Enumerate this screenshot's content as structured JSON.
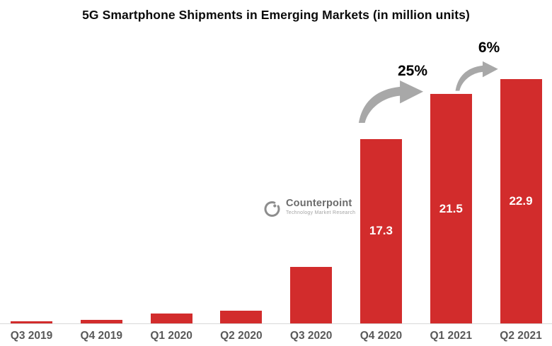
{
  "title": "5G Smartphone Shipments in Emerging Markets (in million units)",
  "watermark": {
    "brand": "Counterpoint",
    "tagline": "Technology Market Research"
  },
  "colors": {
    "background": "#ffffff",
    "bar": "#d22c2c",
    "axis_line": "#d8d8d8",
    "tick_label": "#595959",
    "value_label": "#ffffff",
    "annotation_text": "#000000",
    "arrow": "#a8a8a8",
    "watermark_brand": "#6b6b6b",
    "watermark_tagline": "#a3a3a3",
    "watermark_icon": "#8d8d8d"
  },
  "chart_data": {
    "type": "bar",
    "title": "5G Smartphone Shipments in Emerging Markets (in million units)",
    "categories": [
      "Q3 2019",
      "Q4 2019",
      "Q1 2020",
      "Q2 2020",
      "Q3 2020",
      "Q4 2020",
      "Q1 2021",
      "Q2 2021"
    ],
    "values": [
      0.2,
      0.3,
      0.9,
      1.2,
      5.3,
      17.3,
      21.5,
      22.9
    ],
    "value_labels": [
      "",
      "",
      "",
      "",
      "",
      "17.3",
      "21.5",
      "22.9"
    ],
    "annotations": [
      {
        "label": "25%",
        "from": "Q4 2020",
        "to": "Q1 2021"
      },
      {
        "label": "6%",
        "from": "Q1 2021",
        "to": "Q2 2021"
      }
    ],
    "xlabel": "",
    "ylabel": "",
    "ylim": [
      0,
      24
    ],
    "grid": false,
    "legend": false,
    "bar_color": "#d22c2c"
  }
}
